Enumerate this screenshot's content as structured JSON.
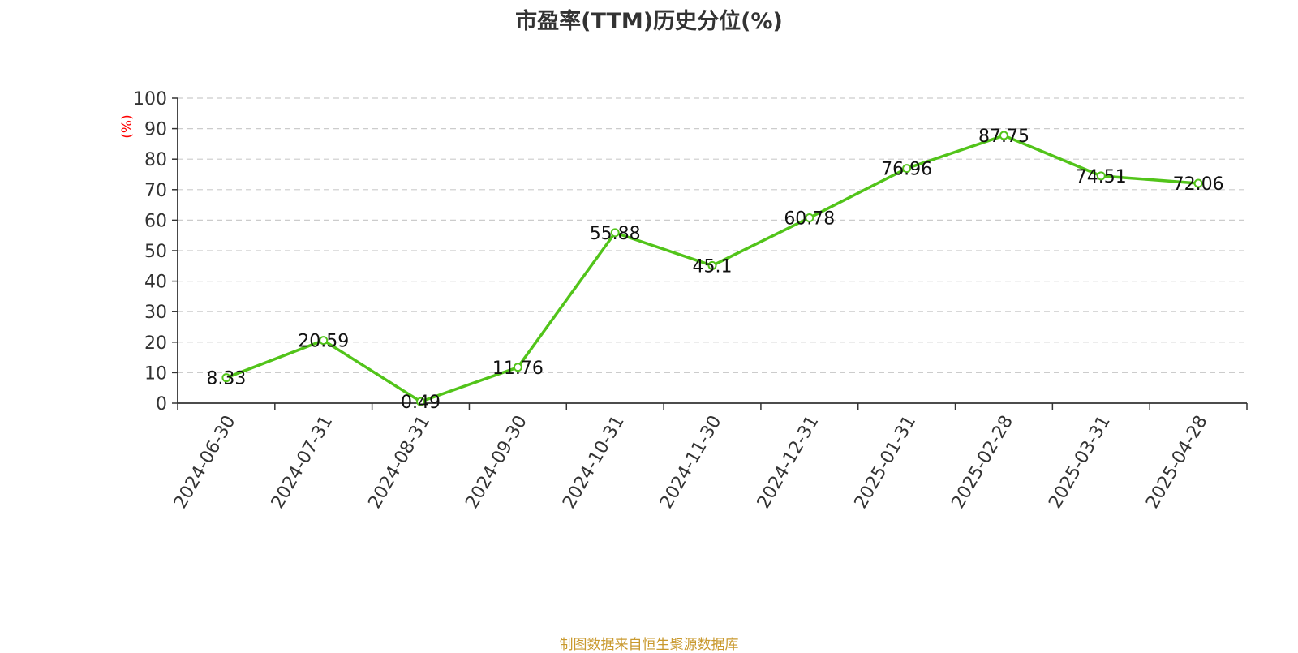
{
  "title": "市盈率(TTM)历史分位(%)",
  "footer": "制图数据来自恒生聚源数据库",
  "colors": {
    "line": "#52c41a",
    "axis": "#333333",
    "grid": "#cccccc",
    "unit": "#ff0000",
    "footer": "#c9992e",
    "title": "#333333"
  },
  "chart_data": {
    "type": "line",
    "title": "市盈率(TTM)历史分位(%)",
    "ylabel": "(%)",
    "xlabel": "",
    "ylim": [
      0,
      100
    ],
    "yticks": [
      0,
      10,
      20,
      30,
      40,
      50,
      60,
      70,
      80,
      90,
      100
    ],
    "grid": true,
    "categories": [
      "2024-06-30",
      "2024-07-31",
      "2024-08-31",
      "2024-09-30",
      "2024-10-31",
      "2024-11-30",
      "2024-12-31",
      "2025-01-31",
      "2025-02-28",
      "2025-03-31",
      "2025-04-28"
    ],
    "series": [
      {
        "values": [
          8.33,
          20.59,
          0.49,
          11.76,
          55.88,
          45.1,
          60.78,
          76.96,
          87.75,
          74.51,
          72.06
        ],
        "labels": [
          "8.33",
          "20.59",
          "0.49",
          "11.76",
          "55.88",
          "45.1",
          "60.78",
          "76.96",
          "87.75",
          "74.51",
          "72.06"
        ]
      }
    ]
  }
}
